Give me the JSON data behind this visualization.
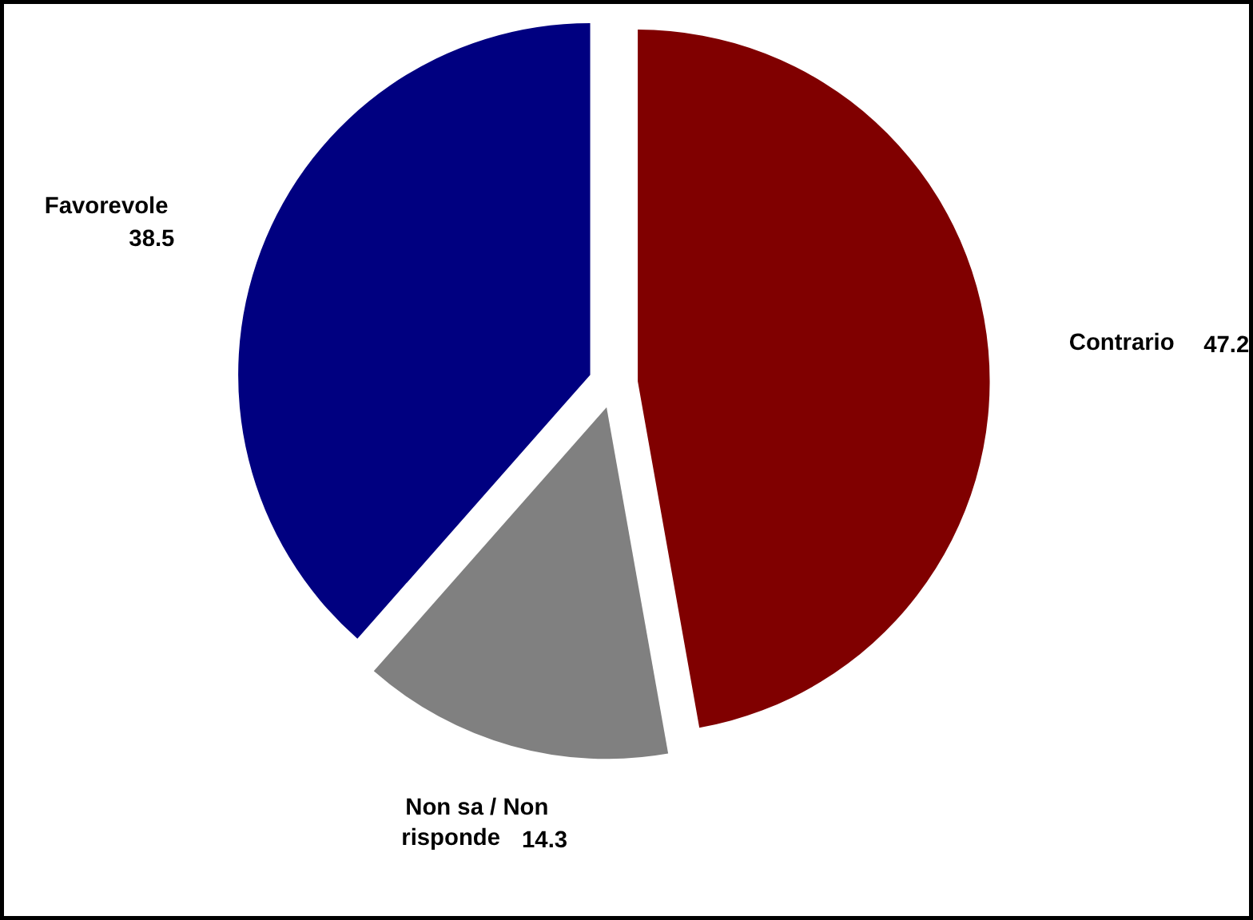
{
  "chart_data": {
    "type": "pie",
    "categories": [
      "Contrario",
      "Non sa / Non risponde",
      "Favorevole"
    ],
    "values": [
      47.2,
      14.3,
      38.5
    ],
    "colors": [
      "#800000",
      "#808080",
      "#000080"
    ],
    "data_labels": true
  }
}
